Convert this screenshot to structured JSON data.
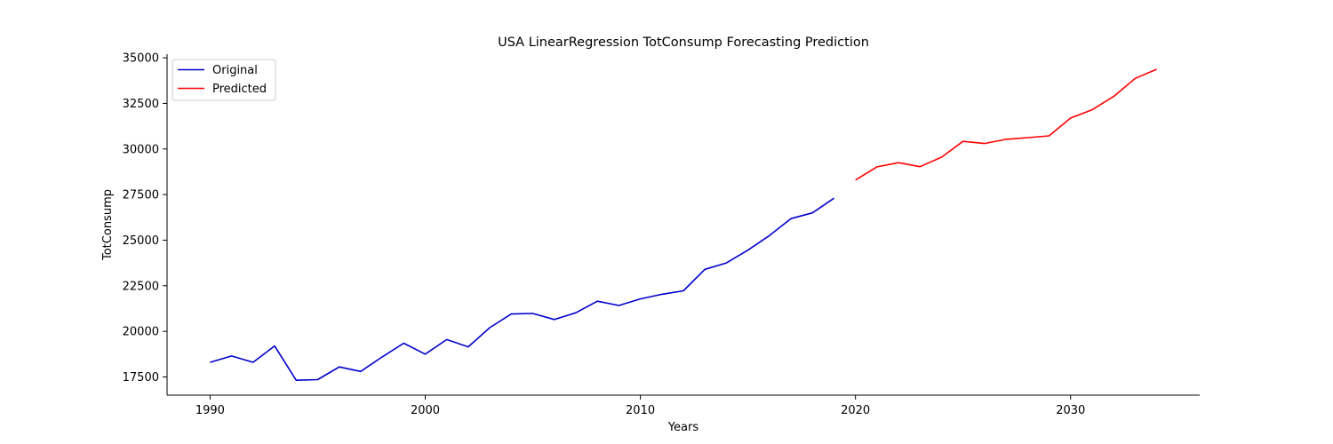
{
  "chart_data": {
    "type": "line",
    "title": "USA LinearRegression TotConsump Forecasting Prediction",
    "xlabel": "Years",
    "ylabel": "TotConsump",
    "xlim": [
      1988,
      2036
    ],
    "ylim": [
      16500,
      35200
    ],
    "xticks": [
      1990,
      2000,
      2010,
      2020,
      2030
    ],
    "yticks": [
      17500,
      20000,
      22500,
      25000,
      27500,
      30000,
      32500,
      35000
    ],
    "grid": false,
    "legend_position": "top-left",
    "series": [
      {
        "name": "Original",
        "color": "#0000cc",
        "x": [
          1990,
          1991,
          1992,
          1993,
          1994,
          1995,
          1996,
          1997,
          1998,
          1999,
          2000,
          2001,
          2002,
          2003,
          2004,
          2005,
          2006,
          2007,
          2008,
          2009,
          2010,
          2011,
          2012,
          2013,
          2014,
          2015,
          2016,
          2017,
          2018,
          2019
        ],
        "y": [
          18300,
          18650,
          18300,
          19200,
          17320,
          17350,
          18050,
          17800,
          18600,
          19350,
          18750,
          19550,
          19150,
          20200,
          20950,
          20980,
          20650,
          21020,
          21650,
          21420,
          21780,
          22030,
          22220,
          23400,
          23750,
          24450,
          25250,
          26180,
          26500,
          27300
        ]
      },
      {
        "name": "Predicted",
        "color": "#ff0000",
        "x": [
          2020,
          2021,
          2022,
          2023,
          2024,
          2025,
          2026,
          2027,
          2028,
          2029,
          2030,
          2031,
          2032,
          2033,
          2034
        ],
        "y": [
          28300,
          29020,
          29250,
          29030,
          29550,
          30420,
          30300,
          30530,
          30620,
          30720,
          31700,
          32150,
          32880,
          33870,
          34370
        ]
      }
    ]
  }
}
